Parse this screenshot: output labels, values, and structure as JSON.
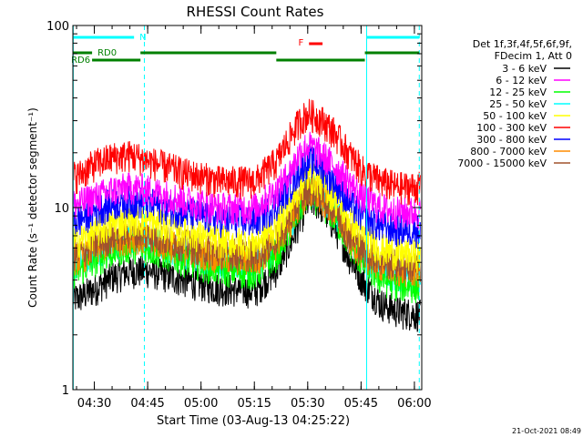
{
  "chart_data": {
    "type": "line",
    "title": "RHESSI Count Rates",
    "xlabel": "Start Time (03-Aug-13 04:25:22)",
    "ylabel": "Count Rate (s⁻¹ detector segment⁻¹)",
    "yscale": "log",
    "ylim": [
      1,
      100
    ],
    "xlim_minutes": [
      -1.4,
      96.7
    ],
    "x_ticks": [
      {
        "label": "04:30",
        "t": 4.63
      },
      {
        "label": "04:45",
        "t": 19.63
      },
      {
        "label": "05:00",
        "t": 34.63
      },
      {
        "label": "05:15",
        "t": 49.63
      },
      {
        "label": "05:30",
        "t": 64.63
      },
      {
        "label": "05:45",
        "t": 79.63
      },
      {
        "label": "06:00",
        "t": 94.63
      }
    ],
    "y_ticks": [
      {
        "label": "1",
        "v": 1
      },
      {
        "label": "10",
        "v": 10
      },
      {
        "label": "100",
        "v": 100
      }
    ],
    "legend_header": [
      "Det 1f,3f,4f,5f,6f,9f,",
      "FDecim 1, Att 0"
    ],
    "legend_position": "right",
    "series": [
      {
        "name": "3 - 6 keV",
        "color": "#000000",
        "t": [
          0,
          5,
          10,
          15,
          20,
          30,
          40,
          50,
          56,
          60,
          63,
          65,
          68,
          72,
          76,
          80,
          85,
          90,
          96
        ],
        "values": [
          3.2,
          3.6,
          4.2,
          4.5,
          4.5,
          4.0,
          3.6,
          3.5,
          4.6,
          6.5,
          9.0,
          11.0,
          10.5,
          8.0,
          5.5,
          4.0,
          3.0,
          2.7,
          2.6
        ]
      },
      {
        "name": "6 - 12 keV",
        "color": "#ff00ff",
        "t": [
          0,
          5,
          10,
          15,
          20,
          30,
          40,
          50,
          56,
          60,
          63,
          65,
          68,
          72,
          76,
          80,
          85,
          90,
          96
        ],
        "values": [
          10.5,
          11.5,
          12.5,
          13.0,
          12.5,
          11.0,
          10.0,
          10.0,
          12.5,
          16.0,
          21.0,
          22.0,
          20.0,
          17.0,
          14.0,
          11.5,
          10.0,
          9.5,
          9.5
        ]
      },
      {
        "name": "12 - 25 keV",
        "color": "#00ff00",
        "t": [
          0,
          5,
          10,
          15,
          20,
          30,
          40,
          50,
          56,
          60,
          63,
          65,
          68,
          72,
          76,
          80,
          85,
          90,
          96
        ],
        "values": [
          4.5,
          5.2,
          5.8,
          6.2,
          6.0,
          5.2,
          4.6,
          4.4,
          5.6,
          7.8,
          10.5,
          12.0,
          11.0,
          9.0,
          6.6,
          5.0,
          4.1,
          3.8,
          3.7
        ]
      },
      {
        "name": "25 - 50 keV",
        "color": "#00ffff",
        "t": [
          0,
          5,
          10,
          15,
          20,
          30,
          40,
          50,
          56,
          60,
          63,
          65,
          68,
          72,
          76,
          80,
          85,
          90,
          96
        ],
        "values": [
          5.0,
          5.8,
          6.4,
          6.9,
          6.6,
          5.8,
          5.1,
          4.9,
          6.2,
          8.5,
          11.5,
          13.0,
          12.0,
          9.8,
          7.2,
          5.6,
          4.6,
          4.3,
          4.2
        ]
      },
      {
        "name": "50 - 100 keV",
        "color": "#ffff00",
        "t": [
          0,
          5,
          10,
          15,
          20,
          30,
          40,
          50,
          56,
          60,
          63,
          65,
          68,
          72,
          76,
          80,
          85,
          90,
          96
        ],
        "values": [
          6.6,
          7.4,
          8.2,
          8.7,
          8.4,
          7.4,
          6.6,
          6.4,
          7.9,
          10.5,
          13.5,
          15.0,
          14.0,
          11.5,
          8.8,
          7.0,
          6.0,
          5.6,
          5.5
        ]
      },
      {
        "name": "100 - 300 keV",
        "color": "#ff0000",
        "t": [
          0,
          5,
          10,
          15,
          20,
          30,
          40,
          50,
          56,
          60,
          63,
          65,
          68,
          72,
          76,
          80,
          85,
          90,
          96
        ],
        "values": [
          15.0,
          17.5,
          19.0,
          19.5,
          18.0,
          15.5,
          14.0,
          14.0,
          18.0,
          25.0,
          31.0,
          33.0,
          31.0,
          26.0,
          20.0,
          16.0,
          14.0,
          13.0,
          13.0
        ]
      },
      {
        "name": "300 - 800 keV",
        "color": "#0000ff",
        "t": [
          0,
          5,
          10,
          15,
          20,
          30,
          40,
          50,
          56,
          60,
          63,
          65,
          68,
          72,
          76,
          80,
          85,
          90,
          96
        ],
        "values": [
          8.5,
          9.7,
          10.6,
          11.0,
          10.6,
          9.5,
          8.6,
          8.5,
          10.5,
          13.5,
          17.0,
          18.5,
          17.0,
          14.0,
          10.8,
          9.0,
          8.0,
          7.6,
          7.6
        ]
      },
      {
        "name": "800 - 7000 keV",
        "color": "#ff8c00",
        "t": [
          0,
          5,
          10,
          15,
          20,
          30,
          40,
          50,
          56,
          60,
          63,
          65,
          68,
          72,
          76,
          80,
          85,
          90,
          96
        ],
        "values": [
          5.3,
          6.0,
          6.6,
          7.0,
          6.7,
          6.0,
          5.4,
          5.2,
          6.4,
          8.6,
          11.2,
          12.5,
          11.6,
          9.4,
          7.0,
          5.6,
          4.9,
          4.6,
          4.5
        ]
      },
      {
        "name": "7000 - 15000 keV",
        "color": "#a0522d",
        "t": [
          0,
          5,
          10,
          15,
          20,
          30,
          40,
          50,
          56,
          60,
          63,
          65,
          68,
          72,
          76,
          80,
          85,
          90,
          96
        ],
        "values": [
          5.6,
          6.3,
          7.0,
          7.4,
          7.1,
          6.3,
          5.7,
          5.5,
          6.8,
          9.0,
          11.6,
          13.0,
          12.0,
          9.8,
          7.3,
          5.9,
          5.2,
          4.9,
          4.8
        ]
      }
    ],
    "vertical_lines": [
      {
        "t": -1.3,
        "style": "solid",
        "color": "#00ffff"
      },
      {
        "t": 18.7,
        "style": "dashed",
        "color": "#00ffff"
      },
      {
        "t": 81.2,
        "style": "solid",
        "color": "#00ffff"
      },
      {
        "t": 96.0,
        "style": "dashed",
        "color": "#00ffff"
      }
    ],
    "annotation_bars": [
      {
        "label": "N",
        "color": "#00ffff",
        "t0": -1.3,
        "t1": 15.8,
        "level": "top"
      },
      {
        "label": "",
        "color": "#00ffff",
        "t0": 81.2,
        "t1": 96.0,
        "level": "top"
      },
      {
        "label": "RD0",
        "color": "#008000",
        "t0": -1.3,
        "t1": 4.0,
        "level": "upper"
      },
      {
        "label": "RD6",
        "color": "#008000",
        "t0": 4.0,
        "t1": 17.6,
        "level": "lower"
      },
      {
        "label": "",
        "color": "#008000",
        "t0": 17.6,
        "t1": 55.8,
        "level": "upper"
      },
      {
        "label": "",
        "color": "#008000",
        "t0": 55.8,
        "t1": 80.7,
        "level": "lower"
      },
      {
        "label": "",
        "color": "#008000",
        "t0": 80.7,
        "t1": 96.0,
        "level": "upper"
      },
      {
        "label": "F",
        "color": "#ff0000",
        "t0": 65.0,
        "t1": 68.8,
        "level": "flare"
      }
    ],
    "timestamp": "21-Oct-2021 08:49"
  }
}
